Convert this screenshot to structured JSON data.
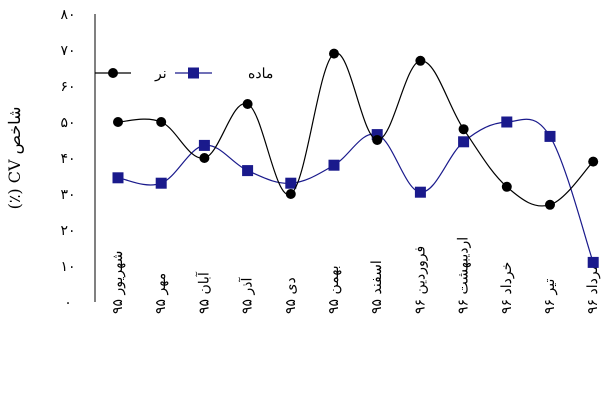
{
  "chart_data": {
    "type": "line",
    "title": "",
    "xlabel": "",
    "ylabel": "شاخص CV (٪)",
    "ylim": [
      0,
      80
    ],
    "yticks": [
      0,
      10,
      20,
      30,
      40,
      50,
      60,
      70,
      80
    ],
    "ytick_labels": [
      "٠",
      "١٠",
      "٢٠",
      "٣٠",
      "۴٠",
      "۵٠",
      "۶٠",
      "٧٠",
      "٨٠"
    ],
    "grid": false,
    "legend_position": "top-left",
    "categories": [
      "شهریور ۹۵",
      "مهر ۹۵",
      "آبان ۹۵",
      "آذر ۹۵",
      "دی ۹۵",
      "بهمن ۹۵",
      "اسفند ۹۵",
      "فروردین ۹۶",
      "اردیبهشت ۹۶",
      "خرداد ۹۶",
      "تیر ۹۶",
      "مرداد ۹۶"
    ],
    "series": [
      {
        "name": "نر",
        "color": "#000000",
        "marker": "circle",
        "values": [
          50,
          50,
          40,
          55,
          30,
          69,
          45,
          67,
          48,
          32,
          27,
          39
        ]
      },
      {
        "name": "ماده",
        "color": "#1a1a8c",
        "marker": "square",
        "values": [
          34.5,
          33,
          43.5,
          36.5,
          33,
          38,
          46.5,
          30.5,
          44.5,
          50,
          46,
          11
        ]
      }
    ]
  }
}
